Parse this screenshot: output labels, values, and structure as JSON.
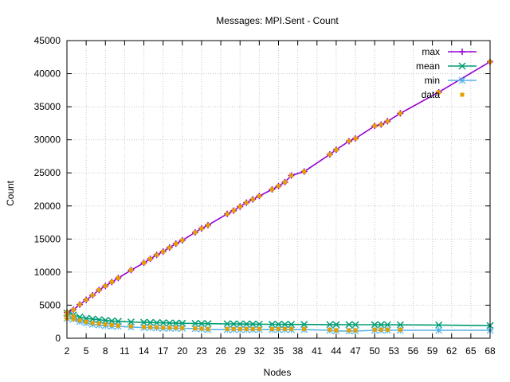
{
  "chart_data": {
    "type": "line",
    "title": "Messages: MPI.Sent - Count",
    "xlabel": "Nodes",
    "ylabel": "Count",
    "xlim": [
      2,
      68
    ],
    "ylim": [
      0,
      45000
    ],
    "x_ticks": [
      2,
      5,
      8,
      11,
      14,
      17,
      20,
      23,
      26,
      29,
      32,
      35,
      38,
      41,
      44,
      47,
      50,
      53,
      56,
      59,
      62,
      65,
      68
    ],
    "y_ticks": [
      0,
      5000,
      10000,
      15000,
      20000,
      25000,
      30000,
      35000,
      40000,
      45000
    ],
    "grid": true,
    "legend_position": "top-right",
    "x": [
      2,
      3,
      4,
      5,
      6,
      7,
      8,
      9,
      10,
      12,
      14,
      15,
      16,
      17,
      18,
      19,
      20,
      22,
      23,
      24,
      27,
      28,
      29,
      30,
      31,
      32,
      34,
      35,
      36,
      37,
      39,
      43,
      44,
      46,
      47,
      50,
      51,
      52,
      54,
      60,
      68
    ],
    "series": [
      {
        "name": "max",
        "color": "#9400d3",
        "marker": "plus",
        "values": [
          3900,
          4300,
          5100,
          5800,
          6500,
          7300,
          7900,
          8500,
          9100,
          10300,
          11400,
          12000,
          12600,
          13100,
          13700,
          14300,
          14800,
          16000,
          16600,
          17100,
          18800,
          19300,
          19900,
          20500,
          21000,
          21500,
          22500,
          23000,
          23600,
          24600,
          25200,
          27800,
          28500,
          29800,
          30200,
          32100,
          32300,
          32800,
          34000,
          37200,
          41800
        ]
      },
      {
        "name": "mean",
        "color": "#009e73",
        "marker": "cross",
        "values": [
          3800,
          3500,
          3200,
          3000,
          2900,
          2800,
          2700,
          2600,
          2550,
          2450,
          2400,
          2380,
          2350,
          2330,
          2300,
          2280,
          2260,
          2230,
          2210,
          2200,
          2170,
          2160,
          2150,
          2140,
          2130,
          2120,
          2100,
          2095,
          2090,
          2085,
          2080,
          2060,
          2055,
          2050,
          2045,
          2040,
          2035,
          2030,
          2025,
          2000,
          1900
        ]
      },
      {
        "name": "min",
        "color": "#56b4e9",
        "marker": "star",
        "values": [
          3000,
          2900,
          2500,
          2300,
          2100,
          2000,
          1900,
          1800,
          1800,
          1700,
          1600,
          1600,
          1550,
          1500,
          1500,
          1500,
          1500,
          1450,
          1400,
          1300,
          1300,
          1300,
          1300,
          1300,
          1300,
          1300,
          1300,
          1300,
          1300,
          1300,
          1300,
          1200,
          1100,
          1100,
          1100,
          1200,
          1200,
          1200,
          1200,
          1200,
          1200
        ]
      }
    ],
    "data_points": {
      "name": "data",
      "color": "#e69f00",
      "marker": "square",
      "x": [
        2,
        2,
        2,
        3,
        3,
        3,
        4,
        4,
        5,
        5,
        6,
        6,
        7,
        7,
        8,
        8,
        9,
        9,
        10,
        10,
        12,
        12,
        14,
        14,
        15,
        15,
        16,
        16,
        17,
        17,
        18,
        18,
        19,
        19,
        20,
        20,
        22,
        22,
        23,
        23,
        24,
        24,
        27,
        27,
        28,
        28,
        29,
        29,
        30,
        30,
        31,
        31,
        32,
        32,
        34,
        34,
        35,
        35,
        36,
        36,
        37,
        37,
        39,
        39,
        43,
        43,
        44,
        44,
        46,
        46,
        47,
        47,
        50,
        50,
        51,
        51,
        52,
        52,
        54,
        54,
        60,
        68
      ],
      "y": [
        3900,
        3400,
        3000,
        4300,
        3300,
        2900,
        5100,
        2700,
        5800,
        2500,
        6500,
        2300,
        7300,
        2200,
        7900,
        2100,
        8500,
        2000,
        9100,
        1900,
        10300,
        1800,
        11400,
        1700,
        12000,
        1700,
        12600,
        1650,
        13100,
        1600,
        13700,
        1600,
        14300,
        1600,
        14800,
        1550,
        16000,
        1500,
        16600,
        1450,
        17100,
        1400,
        18800,
        1400,
        19300,
        1400,
        19900,
        1400,
        20500,
        1400,
        21000,
        1400,
        21500,
        1400,
        22500,
        1400,
        23000,
        1400,
        23600,
        1400,
        24600,
        1400,
        25200,
        1400,
        27800,
        1300,
        28500,
        1200,
        29800,
        1200,
        30200,
        1200,
        32100,
        1300,
        32300,
        1300,
        32800,
        1300,
        34000,
        1300,
        37200,
        41800
      ]
    }
  }
}
